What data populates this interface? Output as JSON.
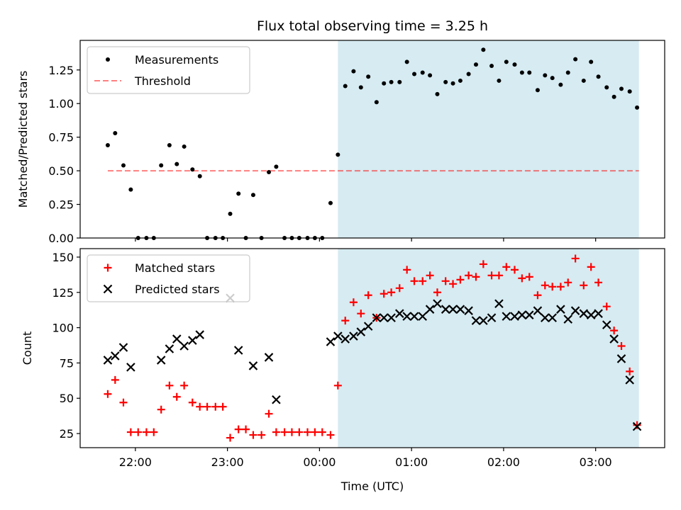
{
  "figure": {
    "title": "Flux total observing time = 3.25 h",
    "xlabel": "Time (UTC)"
  },
  "colors": {
    "shade": "#add8e6",
    "measurement": "#000000",
    "threshold": "#ff0000",
    "matched": "#ff0000",
    "predicted": "#000000"
  },
  "chart_data": [
    {
      "type": "scatter",
      "ylabel": "Matched/Predicted stars",
      "x_unit": "hours after 22:00 UTC (axis ticks show clock time)",
      "xlim": [
        -0.6,
        5.75
      ],
      "ylim": [
        0,
        1.47
      ],
      "x_tick_values": [
        0,
        1,
        2,
        3,
        4,
        5
      ],
      "x_tick_labels": [
        "22:00",
        "23:00",
        "00:00",
        "01:00",
        "02:00",
        "03:00"
      ],
      "y_ticks": [
        0.0,
        0.25,
        0.5,
        0.75,
        1.0,
        1.25
      ],
      "y_tick_labels": [
        "0.00",
        "0.25",
        "0.50",
        "0.75",
        "1.00",
        "1.25"
      ],
      "shaded_region": [
        2.2,
        5.47
      ],
      "legend": {
        "position": "upper left",
        "entries": [
          "Measurements",
          "Threshold"
        ]
      },
      "threshold": {
        "name": "Threshold",
        "value": 0.5,
        "x_range": [
          -0.3,
          5.47
        ]
      },
      "series": [
        {
          "name": "Measurements",
          "x": [
            -0.3,
            -0.22,
            -0.13,
            -0.05,
            0.03,
            0.12,
            0.2,
            0.28,
            0.37,
            0.45,
            0.53,
            0.62,
            0.7,
            0.78,
            0.87,
            0.95,
            1.03,
            1.12,
            1.2,
            1.28,
            1.37,
            1.45,
            1.53,
            1.62,
            1.7,
            1.78,
            1.87,
            1.95,
            2.03,
            2.12,
            2.2,
            2.28,
            2.37,
            2.45,
            2.53,
            2.62,
            2.7,
            2.78,
            2.87,
            2.95,
            3.03,
            3.12,
            3.2,
            3.28,
            3.37,
            3.45,
            3.53,
            3.62,
            3.7,
            3.78,
            3.87,
            3.95,
            4.03,
            4.12,
            4.2,
            4.28,
            4.37,
            4.45,
            4.53,
            4.62,
            4.7,
            4.78,
            4.87,
            4.95,
            5.03,
            5.12,
            5.2,
            5.28,
            5.37,
            5.45
          ],
          "y": [
            0.69,
            0.78,
            0.54,
            0.36,
            0.0,
            0.0,
            0.0,
            0.54,
            0.69,
            0.55,
            0.68,
            0.51,
            0.46,
            0.0,
            0.0,
            0.0,
            0.18,
            0.33,
            0.0,
            0.32,
            0.0,
            0.49,
            0.53,
            0.0,
            0.0,
            0.0,
            0.0,
            0.0,
            0.0,
            0.26,
            0.62,
            1.13,
            1.24,
            1.12,
            1.2,
            1.01,
            1.15,
            1.16,
            1.16,
            1.31,
            1.22,
            1.23,
            1.21,
            1.07,
            1.16,
            1.15,
            1.17,
            1.22,
            1.29,
            1.4,
            1.28,
            1.17,
            1.31,
            1.29,
            1.23,
            1.23,
            1.1,
            1.21,
            1.19,
            1.14,
            1.23,
            1.33,
            1.17,
            1.31,
            1.2,
            1.12,
            1.05,
            1.11,
            1.09,
            0.97
          ]
        }
      ]
    },
    {
      "type": "scatter",
      "ylabel": "Count",
      "x_unit": "hours after 22:00 UTC (axis ticks show clock time)",
      "xlim": [
        -0.6,
        5.75
      ],
      "ylim": [
        15,
        156
      ],
      "x_tick_values": [
        0,
        1,
        2,
        3,
        4,
        5
      ],
      "x_tick_labels": [
        "22:00",
        "23:00",
        "00:00",
        "01:00",
        "02:00",
        "03:00"
      ],
      "y_ticks": [
        25,
        50,
        75,
        100,
        125,
        150
      ],
      "y_tick_labels": [
        "25",
        "50",
        "75",
        "100",
        "125",
        "150"
      ],
      "shaded_region": [
        2.2,
        5.47
      ],
      "legend": {
        "position": "upper left",
        "entries": [
          "Matched stars",
          "Predicted stars"
        ]
      },
      "series": [
        {
          "name": "Matched stars",
          "marker": "+",
          "x": [
            -0.3,
            -0.22,
            -0.13,
            -0.05,
            0.03,
            0.12,
            0.2,
            0.28,
            0.37,
            0.45,
            0.53,
            0.62,
            0.7,
            0.78,
            0.87,
            0.95,
            1.03,
            1.12,
            1.2,
            1.28,
            1.37,
            1.45,
            1.53,
            1.62,
            1.7,
            1.78,
            1.87,
            1.95,
            2.03,
            2.12,
            2.2,
            2.28,
            2.37,
            2.45,
            2.53,
            2.62,
            2.7,
            2.78,
            2.87,
            2.95,
            3.03,
            3.12,
            3.2,
            3.28,
            3.37,
            3.45,
            3.53,
            3.62,
            3.7,
            3.78,
            3.87,
            3.95,
            4.03,
            4.12,
            4.2,
            4.28,
            4.37,
            4.45,
            4.53,
            4.62,
            4.7,
            4.78,
            4.87,
            4.95,
            5.03,
            5.12,
            5.2,
            5.28,
            5.37,
            5.45
          ],
          "y": [
            53,
            63,
            47,
            26,
            26,
            26,
            26,
            42,
            59,
            51,
            59,
            47,
            44,
            44,
            44,
            44,
            22,
            28,
            28,
            24,
            24,
            39,
            26,
            26,
            26,
            26,
            26,
            26,
            26,
            24,
            59,
            105,
            118,
            110,
            123,
            107,
            124,
            125,
            128,
            141,
            133,
            133,
            137,
            125,
            133,
            131,
            134,
            137,
            136,
            145,
            137,
            137,
            143,
            141,
            135,
            136,
            123,
            130,
            129,
            129,
            132,
            149,
            130,
            143,
            132,
            115,
            98,
            87,
            69,
            31
          ]
        },
        {
          "name": "Predicted stars",
          "marker": "x",
          "x": [
            -0.3,
            -0.22,
            -0.13,
            -0.05,
            0.28,
            0.37,
            0.45,
            0.53,
            0.62,
            0.7,
            1.03,
            1.12,
            1.28,
            1.45,
            1.53,
            2.12,
            2.2,
            2.28,
            2.37,
            2.45,
            2.53,
            2.62,
            2.7,
            2.78,
            2.87,
            2.95,
            3.03,
            3.12,
            3.2,
            3.28,
            3.37,
            3.45,
            3.53,
            3.62,
            3.7,
            3.78,
            3.87,
            3.95,
            4.03,
            4.12,
            4.2,
            4.28,
            4.37,
            4.45,
            4.53,
            4.62,
            4.7,
            4.78,
            4.87,
            4.95,
            5.03,
            5.12,
            5.2,
            5.28,
            5.37,
            5.45
          ],
          "y": [
            77,
            80,
            86,
            72,
            77,
            85,
            92,
            87,
            91,
            95,
            121,
            84,
            73,
            79,
            49,
            90,
            94,
            92,
            94,
            97,
            101,
            107,
            107,
            107,
            110,
            108,
            108,
            108,
            113,
            117,
            113,
            113,
            113,
            112,
            105,
            105,
            107,
            117,
            108,
            108,
            109,
            109,
            112,
            107,
            107,
            113,
            106,
            112,
            110,
            109,
            110,
            102,
            92,
            78,
            63,
            30
          ]
        }
      ]
    }
  ]
}
